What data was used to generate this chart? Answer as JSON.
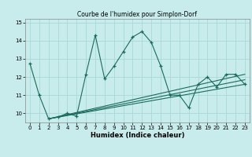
{
  "title": "Courbe de l'humidex pour Simplon-Dorf",
  "xlabel": "Humidex (Indice chaleur)",
  "bg_color": "#c8ecec",
  "grid_color": "#a8d8d8",
  "line_color": "#1a6b5a",
  "xlim": [
    -0.5,
    23.5
  ],
  "ylim": [
    9.5,
    15.2
  ],
  "yticks": [
    10,
    11,
    12,
    13,
    14,
    15
  ],
  "xticks": [
    0,
    1,
    2,
    3,
    4,
    5,
    6,
    7,
    8,
    9,
    10,
    11,
    12,
    13,
    14,
    15,
    16,
    17,
    18,
    19,
    20,
    21,
    22,
    23
  ],
  "main_x": [
    0,
    1,
    2,
    3,
    4,
    5,
    6,
    7,
    8,
    9,
    10,
    11,
    12,
    13,
    14,
    15,
    16,
    17,
    18,
    19,
    20,
    21,
    22,
    23
  ],
  "main_y": [
    12.75,
    11.0,
    9.7,
    9.8,
    10.0,
    9.85,
    12.15,
    14.3,
    11.9,
    12.6,
    13.4,
    14.2,
    14.5,
    13.9,
    12.6,
    11.0,
    11.0,
    10.3,
    11.6,
    12.0,
    11.45,
    12.15,
    12.15,
    11.6
  ],
  "line1_x": [
    2,
    23
  ],
  "line1_y": [
    9.7,
    11.6
  ],
  "line2_x": [
    2,
    23
  ],
  "line2_y": [
    9.7,
    11.85
  ],
  "line3_x": [
    2,
    23
  ],
  "line3_y": [
    9.7,
    12.15
  ]
}
